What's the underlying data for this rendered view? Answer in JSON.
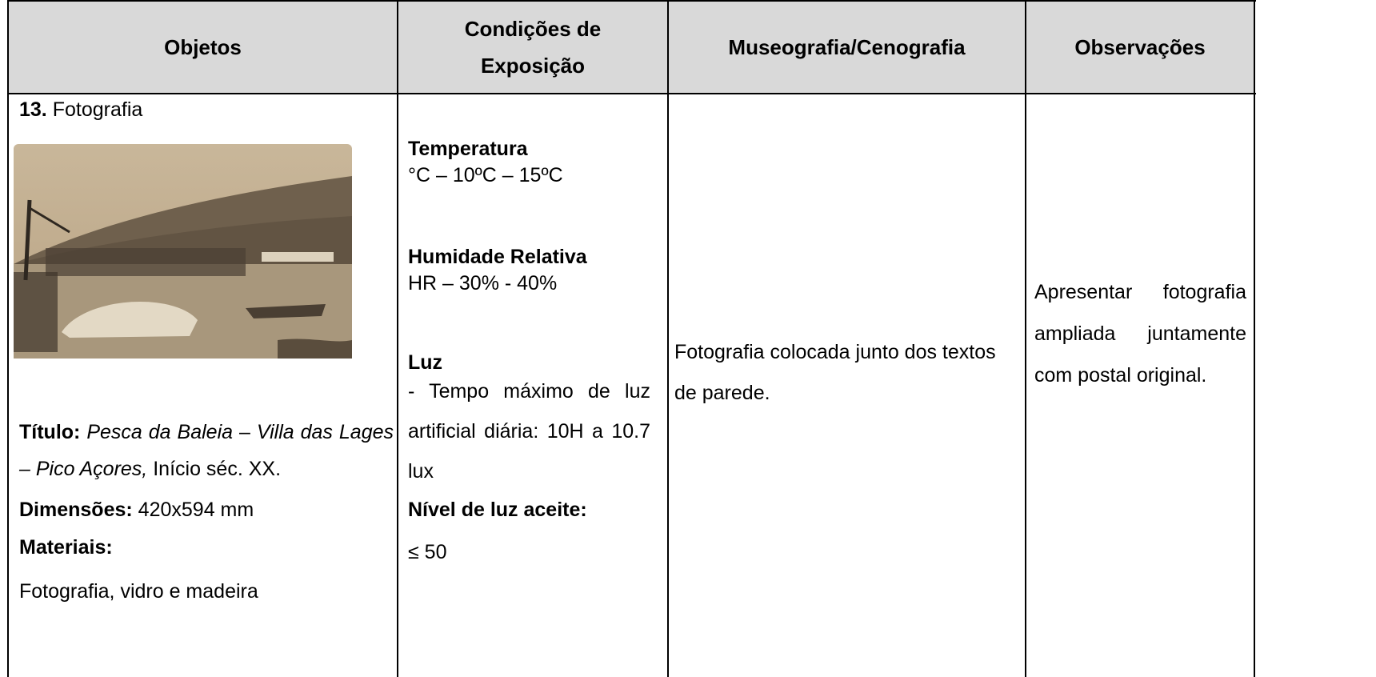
{
  "table": {
    "header": [
      "Objetos",
      "Condições de Exposição",
      "Museografia/Cenografia",
      "Observações"
    ],
    "object": {
      "number": "13.",
      "name": "Fotografia",
      "title_label": "Título:",
      "title": "Pesca da Baleia",
      "title_sep": "–",
      "title_place": "Villa das Lages – Pico Açores,",
      "date": "Início séc. XX.",
      "dimensions_label": "Dimensões:",
      "dimensions": "420x594 mm",
      "materials_label": "Materiais:",
      "materials": "Fotografia, vidro e madeira"
    },
    "conditions": {
      "temperature_label": "Temperatura",
      "temperature": "°C – 10ºC – 15ºC",
      "humidity_label": "Humidade Relativa",
      "humidity": "HR – 30% - 40%",
      "light_label": "Luz",
      "light": "- Tempo máximo de luz artificial diária: 10H a 10.7 lux",
      "light_level_label": "Nível de luz aceite:",
      "light_level": "≤ 50"
    },
    "museography": "Fotografia colocada junto dos textos de parede.",
    "observations": "Apresentar fotografia ampliada juntamente com postal original."
  }
}
